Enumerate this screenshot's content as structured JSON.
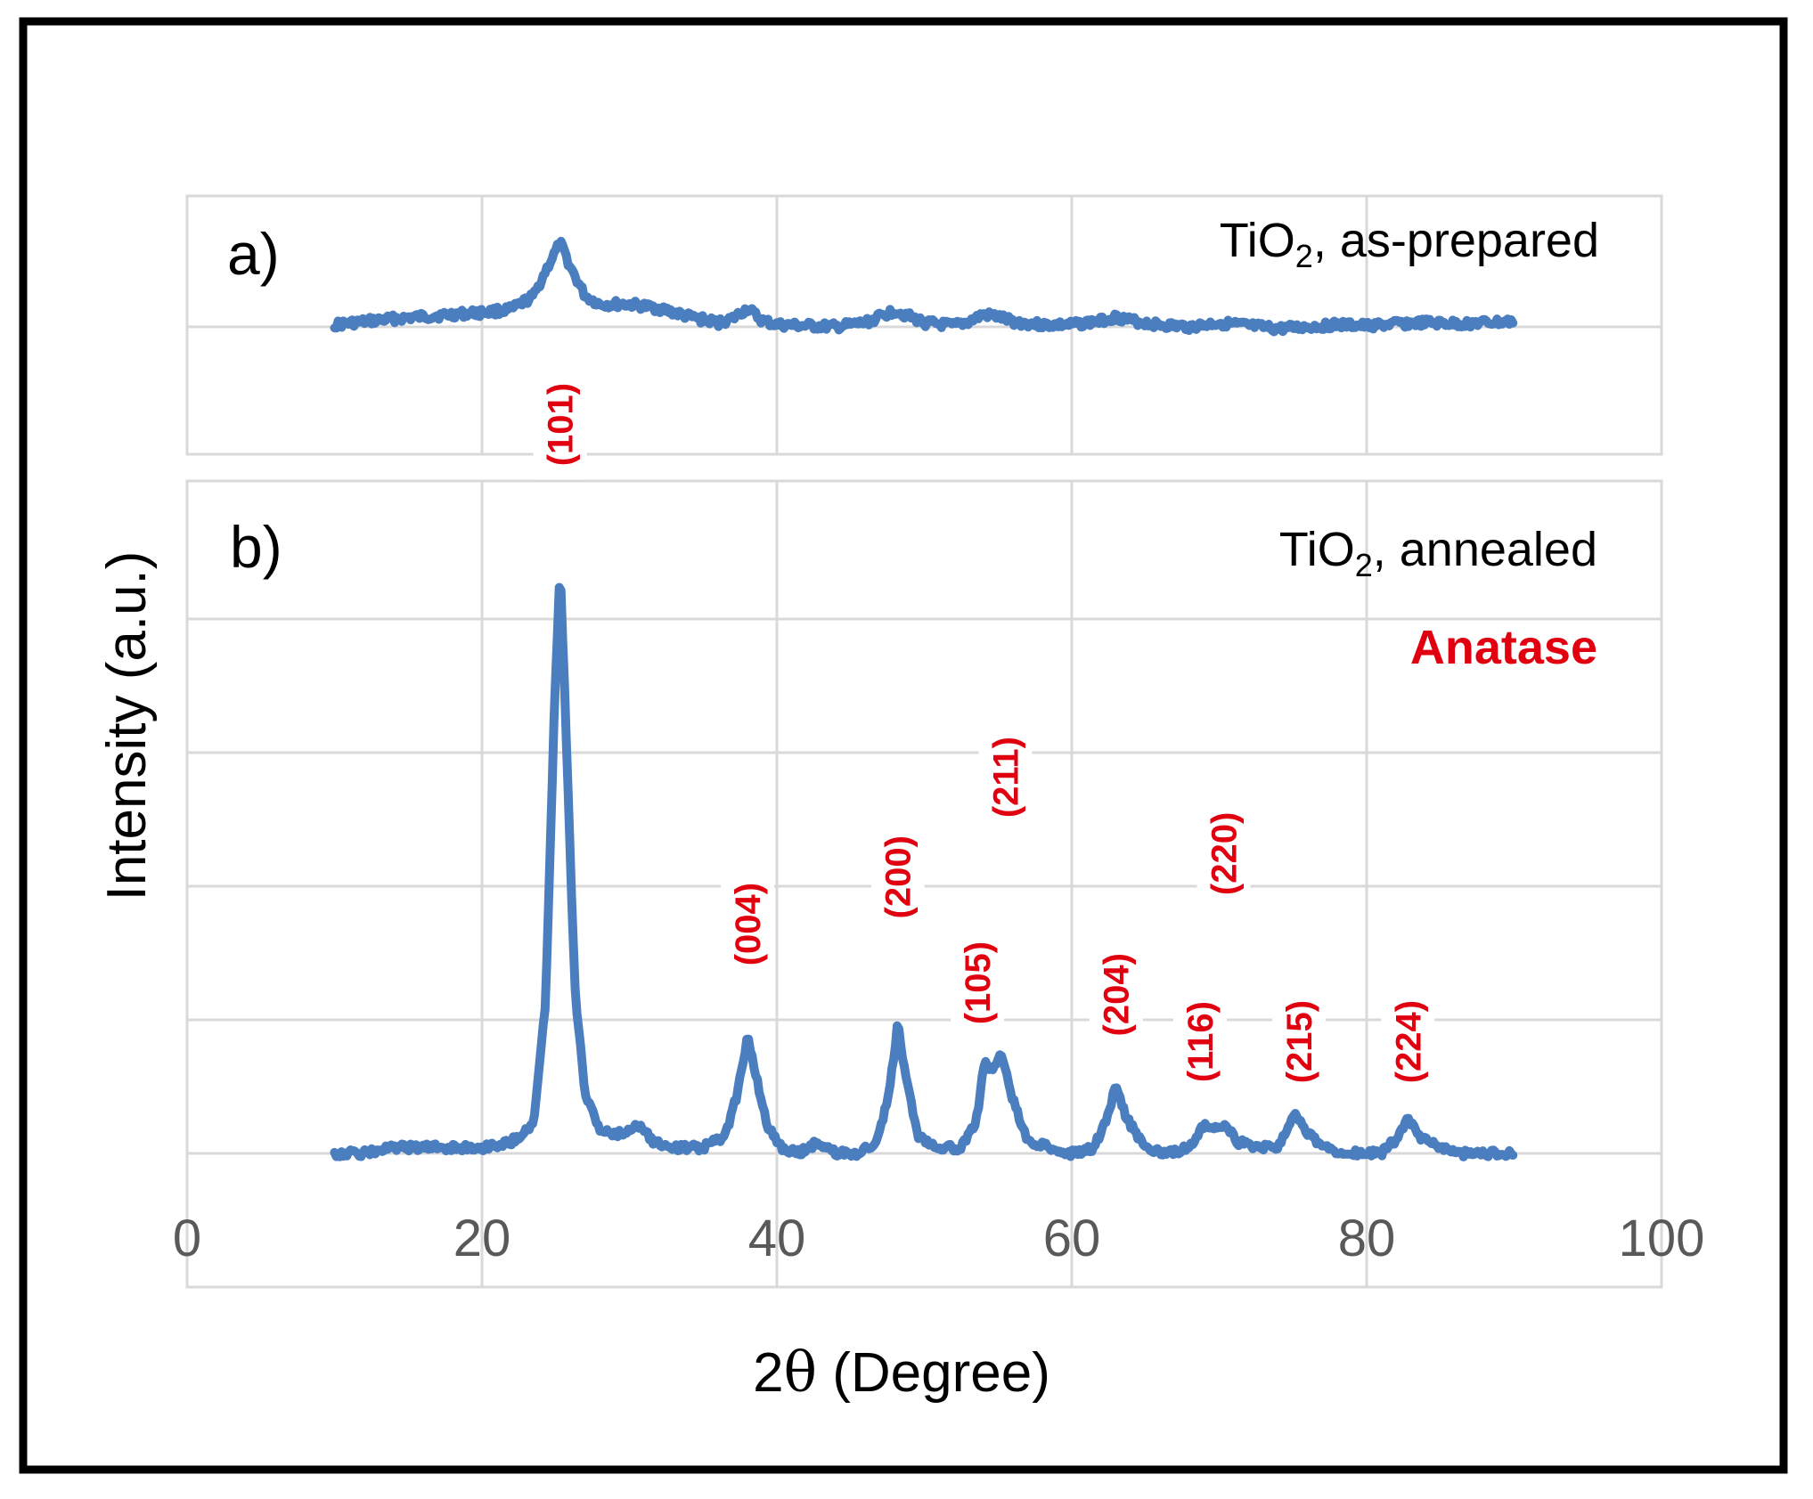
{
  "figure": {
    "ylabel": "Intensity (a.u.)",
    "xlabel_prefix": "2",
    "xlabel_symbol": "θ",
    "xlabel_suffix": " (Degree)",
    "x_ticks": [
      "0",
      "20",
      "40",
      "60",
      "80",
      "100"
    ],
    "series_color": "#4a7ebf",
    "annotation_color": "#e0000f"
  },
  "chart_data": [
    {
      "type": "line",
      "panel_label": "a)",
      "legend_prefix": "TiO",
      "legend_sub": "2",
      "legend_suffix": ", as-prepared",
      "xlim": [
        0,
        100
      ],
      "ylim": [
        -1.0,
        1.0
      ],
      "series": [
        {
          "name": "TiO2, as-prepared",
          "x": [
            10,
            12,
            14,
            16,
            18,
            20,
            22,
            23.5,
            24.5,
            25.3,
            26,
            27,
            28,
            30,
            32,
            34,
            36,
            37,
            38,
            39,
            40,
            42,
            44,
            46,
            47,
            48,
            49,
            50,
            52,
            53,
            54,
            55,
            56,
            58,
            60,
            62,
            63,
            64,
            66,
            68,
            70,
            72,
            74,
            76,
            78,
            80,
            82,
            84,
            86,
            88,
            90
          ],
          "values": [
            0.02,
            0.05,
            0.08,
            0.1,
            0.12,
            0.14,
            0.17,
            0.3,
            0.6,
            0.82,
            0.58,
            0.3,
            0.22,
            0.22,
            0.18,
            0.1,
            0.04,
            0.08,
            0.18,
            0.06,
            0.02,
            0.01,
            0.0,
            0.04,
            0.1,
            0.16,
            0.1,
            0.04,
            0.01,
            0.05,
            0.12,
            0.1,
            0.05,
            0.02,
            0.02,
            0.06,
            0.1,
            0.06,
            0.02,
            0.0,
            0.04,
            0.01,
            -0.02,
            0.0,
            0.02,
            0.01,
            0.03,
            0.04,
            0.03,
            0.04,
            0.05
          ]
        }
      ]
    },
    {
      "type": "line",
      "panel_label": "b)",
      "legend_prefix": "TiO",
      "legend_sub": "2",
      "legend_suffix": ", annealed",
      "phase_label": "Anatase",
      "xlim": [
        0,
        100
      ],
      "ylim": [
        0,
        1
      ],
      "series": [
        {
          "name": "TiO2, annealed",
          "x": [
            10,
            12,
            14,
            16,
            18,
            20,
            22,
            23.5,
            24.3,
            24.9,
            25.3,
            25.7,
            26.3,
            27,
            28,
            29,
            30,
            30.8,
            31.6,
            33,
            35,
            36.5,
            37.3,
            38,
            38.6,
            39.3,
            40.3,
            41.5,
            42.8,
            44,
            45.5,
            46.8,
            47.6,
            48.2,
            48.8,
            49.6,
            51,
            52.5,
            53.5,
            54.1,
            54.6,
            55.2,
            55.9,
            57,
            58.5,
            60,
            61.5,
            62.4,
            63,
            63.7,
            65,
            66.5,
            68,
            69,
            69.6,
            70.4,
            71.2,
            72.5,
            74,
            74.7,
            75.2,
            75.8,
            77,
            79,
            81,
            82.2,
            82.8,
            83.5,
            85,
            86.5,
            88,
            90
          ],
          "values": [
            0.0,
            0.0,
            0.01,
            0.01,
            0.01,
            0.01,
            0.02,
            0.05,
            0.25,
            0.75,
            1.0,
            0.72,
            0.28,
            0.1,
            0.04,
            0.03,
            0.04,
            0.05,
            0.02,
            0.01,
            0.01,
            0.03,
            0.1,
            0.2,
            0.13,
            0.05,
            0.01,
            0.0,
            0.02,
            0.0,
            0.0,
            0.02,
            0.1,
            0.22,
            0.12,
            0.03,
            0.01,
            0.01,
            0.05,
            0.16,
            0.14,
            0.17,
            0.1,
            0.02,
            0.01,
            0.0,
            0.01,
            0.06,
            0.12,
            0.06,
            0.01,
            0.0,
            0.01,
            0.05,
            0.04,
            0.05,
            0.02,
            0.01,
            0.01,
            0.05,
            0.07,
            0.04,
            0.01,
            0.0,
            0.0,
            0.03,
            0.06,
            0.03,
            0.01,
            0.0,
            0.0,
            0.0
          ]
        }
      ],
      "annotations": [
        {
          "label": "(101)",
          "x": 25.3,
          "y": 1.24
        },
        {
          "label": "(004)",
          "x": 38.0,
          "y": 0.39
        },
        {
          "label": "(200)",
          "x": 48.2,
          "y": 0.47
        },
        {
          "label": "(105)",
          "x": 53.6,
          "y": 0.29
        },
        {
          "label": "(211)",
          "x": 55.5,
          "y": 0.64
        },
        {
          "label": "(204)",
          "x": 63.0,
          "y": 0.27
        },
        {
          "label": "(116)",
          "x": 68.7,
          "y": 0.19
        },
        {
          "label": "(220)",
          "x": 70.3,
          "y": 0.51
        },
        {
          "label": "(215)",
          "x": 75.4,
          "y": 0.19
        },
        {
          "label": "(224)",
          "x": 82.8,
          "y": 0.19
        }
      ]
    }
  ]
}
